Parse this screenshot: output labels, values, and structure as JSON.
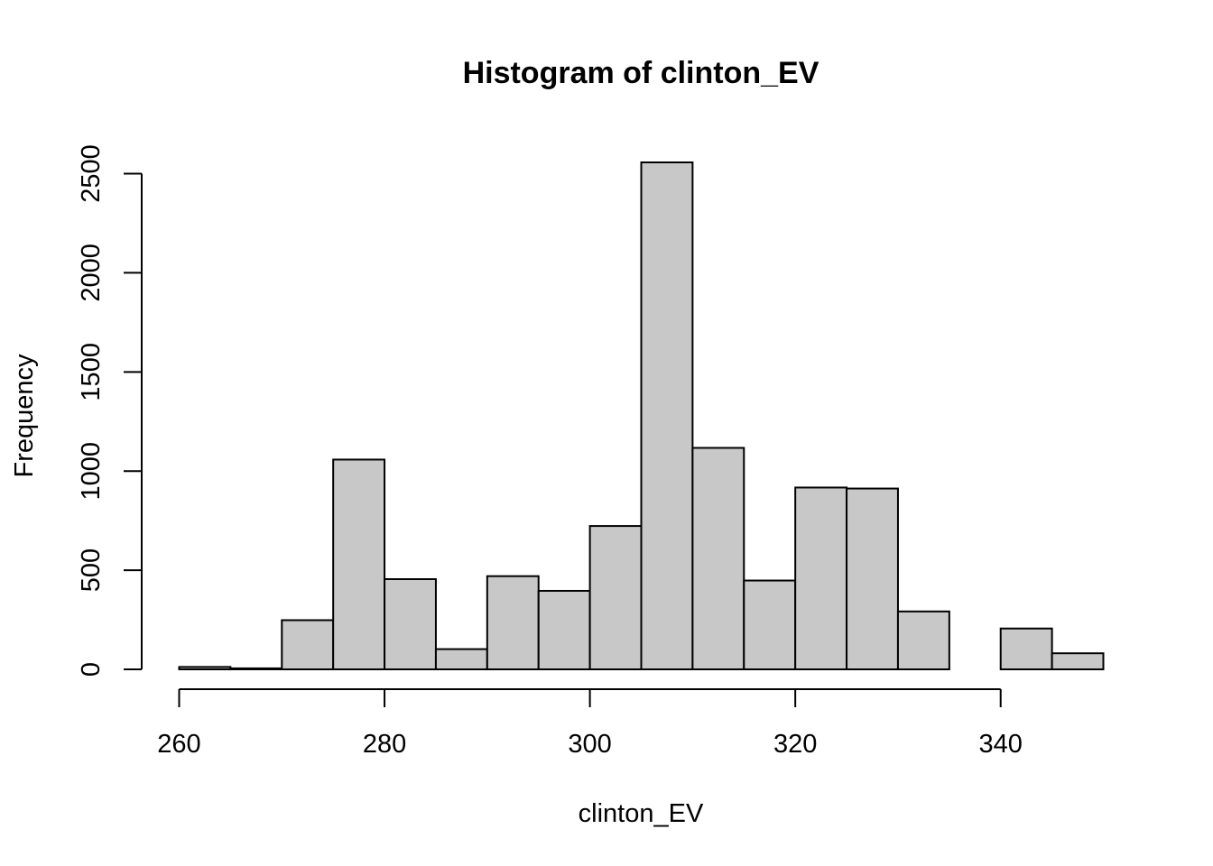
{
  "chart_data": {
    "type": "bar",
    "title": "Histogram of clinton_EV",
    "xlabel": "clinton_EV",
    "ylabel": "Frequency",
    "bins": [
      [
        260,
        265
      ],
      [
        265,
        270
      ],
      [
        270,
        275
      ],
      [
        275,
        280
      ],
      [
        280,
        285
      ],
      [
        285,
        290
      ],
      [
        290,
        295
      ],
      [
        295,
        300
      ],
      [
        300,
        305
      ],
      [
        305,
        310
      ],
      [
        310,
        315
      ],
      [
        315,
        320
      ],
      [
        320,
        325
      ],
      [
        325,
        330
      ],
      [
        330,
        335
      ],
      [
        335,
        340
      ],
      [
        340,
        345
      ],
      [
        345,
        350
      ]
    ],
    "values": [
      12,
      5,
      248,
      1058,
      455,
      102,
      470,
      396,
      723,
      2557,
      1117,
      448,
      917,
      912,
      292,
      0,
      206,
      81
    ],
    "xticks": [
      260,
      280,
      300,
      320,
      340
    ],
    "yticks": [
      0,
      500,
      1000,
      1500,
      2000,
      2500
    ],
    "xlim": [
      260,
      350
    ],
    "ylim": [
      0,
      2557
    ],
    "bar_fill": "#c8c8c8",
    "bar_stroke": "#000000",
    "grid": false
  }
}
